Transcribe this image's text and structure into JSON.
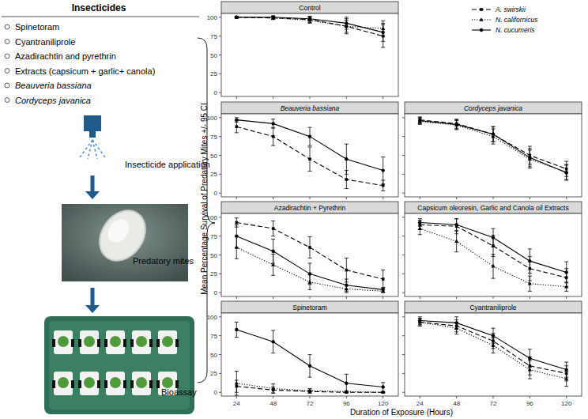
{
  "diagram": {
    "title": "Insecticides",
    "items": [
      "Spinetoram",
      "Cyantraniliprole",
      "Azadirachtin and pyrethrin",
      "Extracts (capsicum + garlic+ canola)",
      "Beauveria bassiana",
      "Cordyceps javanica"
    ],
    "steps": [
      "Insecticide application",
      "Predatory mites",
      "Bioassay"
    ]
  },
  "figure": {
    "y_label": "Mean Percentage Survival of Predatory Mites +/- 95 CI",
    "x_label": "Duration of Exposure (Hours)"
  },
  "chart_data": [
    {
      "type": "line",
      "title": "Control",
      "x": [
        24,
        48,
        72,
        96,
        120
      ],
      "xlim": [
        14,
        130
      ],
      "ylim": [
        -5,
        105
      ],
      "xticks": [
        24,
        48,
        72,
        96,
        120
      ],
      "yticks": [
        0,
        25,
        50,
        75,
        100
      ],
      "grid": false,
      "tick_labels": "y",
      "legend": "top-right",
      "series": [
        {
          "name": "A. swirskii",
          "color": "#000000",
          "marker": "square",
          "line_style": "dashed",
          "values": [
            100,
            99,
            97,
            88,
            75
          ],
          "error": [
            1,
            2,
            4,
            10,
            15
          ]
        },
        {
          "name": "N. californicus",
          "color": "#000000",
          "marker": "triangle",
          "line_style": "dotted",
          "values": [
            100,
            99,
            96,
            88,
            85
          ],
          "error": [
            1,
            2,
            4,
            8,
            10
          ]
        },
        {
          "name": "N. cucumeris",
          "color": "#000000",
          "marker": "circle",
          "line_style": "solid",
          "values": [
            100,
            100,
            98,
            92,
            80
          ],
          "error": [
            1,
            2,
            3,
            8,
            12
          ]
        }
      ]
    },
    {
      "type": "line",
      "title": "Beauveria bassiana",
      "x": [
        24,
        48,
        72,
        96,
        120
      ],
      "xlim": [
        14,
        130
      ],
      "ylim": [
        -5,
        105
      ],
      "xticks": [
        24,
        48,
        72,
        96,
        120
      ],
      "yticks": [
        0,
        25,
        50,
        75,
        100
      ],
      "grid": false,
      "tick_labels": "y",
      "series": [
        {
          "color": "#000000",
          "marker": "square",
          "line_style": "dashed",
          "values": [
            88,
            75,
            45,
            18,
            10
          ],
          "error": [
            8,
            12,
            16,
            12,
            7
          ]
        },
        {
          "color": "#000000",
          "marker": "circle",
          "line_style": "solid",
          "values": [
            97,
            92,
            75,
            45,
            30
          ],
          "error": [
            3,
            6,
            12,
            20,
            18
          ]
        }
      ]
    },
    {
      "type": "line",
      "title": "Cordyceps javanica",
      "x": [
        24,
        48,
        72,
        96,
        120
      ],
      "xlim": [
        14,
        130
      ],
      "ylim": [
        -5,
        105
      ],
      "xticks": [
        24,
        48,
        72,
        96,
        120
      ],
      "yticks": [
        0,
        25,
        50,
        75,
        100
      ],
      "grid": false,
      "tick_labels": false,
      "series": [
        {
          "color": "#000000",
          "marker": "square",
          "line_style": "dashed",
          "values": [
            97,
            92,
            78,
            50,
            32
          ],
          "error": [
            4,
            6,
            10,
            12,
            10
          ]
        },
        {
          "color": "#000000",
          "marker": "triangle",
          "line_style": "dotted",
          "values": [
            95,
            90,
            75,
            45,
            28
          ],
          "error": [
            4,
            6,
            10,
            12,
            10
          ]
        },
        {
          "color": "#000000",
          "marker": "circle",
          "line_style": "solid",
          "values": [
            96,
            91,
            78,
            47,
            27
          ],
          "error": [
            4,
            6,
            10,
            12,
            10
          ]
        }
      ]
    },
    {
      "type": "line",
      "title": "Azadirachtin + Pyrethrin",
      "x": [
        24,
        48,
        72,
        96,
        120
      ],
      "xlim": [
        14,
        130
      ],
      "ylim": [
        -5,
        105
      ],
      "xticks": [
        24,
        48,
        72,
        96,
        120
      ],
      "yticks": [
        0,
        25,
        50,
        75,
        100
      ],
      "grid": false,
      "tick_labels": "y",
      "series": [
        {
          "color": "#000000",
          "marker": "square",
          "line_style": "dashed",
          "values": [
            93,
            85,
            60,
            30,
            18
          ],
          "error": [
            6,
            10,
            14,
            16,
            12
          ]
        },
        {
          "color": "#000000",
          "marker": "triangle",
          "line_style": "dotted",
          "values": [
            60,
            37,
            14,
            5,
            2
          ],
          "error": [
            15,
            14,
            10,
            5,
            2
          ]
        },
        {
          "color": "#000000",
          "marker": "circle",
          "line_style": "solid",
          "values": [
            75,
            55,
            25,
            10,
            4
          ],
          "error": [
            15,
            16,
            14,
            8,
            3
          ]
        }
      ]
    },
    {
      "type": "line",
      "title": "Capsicum oleoresin, Garlic and Canola oil Extracts",
      "x": [
        24,
        48,
        72,
        96,
        120
      ],
      "xlim": [
        14,
        130
      ],
      "ylim": [
        -5,
        105
      ],
      "xticks": [
        24,
        48,
        72,
        96,
        120
      ],
      "yticks": [
        0,
        25,
        50,
        75,
        100
      ],
      "grid": false,
      "tick_labels": false,
      "series": [
        {
          "color": "#000000",
          "marker": "square",
          "line_style": "dashed",
          "values": [
            90,
            88,
            62,
            32,
            20
          ],
          "error": [
            6,
            10,
            14,
            16,
            12
          ]
        },
        {
          "color": "#000000",
          "marker": "triangle",
          "line_style": "dotted",
          "values": [
            85,
            68,
            35,
            12,
            8
          ],
          "error": [
            8,
            14,
            16,
            10,
            6
          ]
        },
        {
          "color": "#000000",
          "marker": "circle",
          "line_style": "solid",
          "values": [
            93,
            90,
            73,
            42,
            27
          ],
          "error": [
            5,
            8,
            12,
            16,
            14
          ]
        }
      ]
    },
    {
      "type": "line",
      "title": "Spinetoram",
      "x": [
        24,
        48,
        72,
        96,
        120
      ],
      "xlim": [
        14,
        130
      ],
      "ylim": [
        -5,
        105
      ],
      "xticks": [
        24,
        48,
        72,
        96,
        120
      ],
      "yticks": [
        0,
        25,
        50,
        75,
        100
      ],
      "grid": false,
      "tick_labels": true,
      "series": [
        {
          "color": "#000000",
          "marker": "square",
          "line_style": "dashed",
          "values": [
            8,
            3,
            1,
            0,
            0
          ],
          "error": [
            8,
            4,
            2,
            1,
            0
          ]
        },
        {
          "color": "#000000",
          "marker": "triangle",
          "line_style": "dotted",
          "values": [
            12,
            5,
            2,
            1,
            0
          ],
          "error": [
            16,
            6,
            3,
            1,
            0
          ]
        },
        {
          "color": "#000000",
          "marker": "circle",
          "line_style": "solid",
          "values": [
            83,
            67,
            35,
            12,
            7
          ],
          "error": [
            10,
            15,
            15,
            12,
            6
          ]
        }
      ]
    },
    {
      "type": "line",
      "title": "Cyantraniliprole",
      "x": [
        24,
        48,
        72,
        96,
        120
      ],
      "xlim": [
        14,
        130
      ],
      "ylim": [
        -5,
        105
      ],
      "xticks": [
        24,
        48,
        72,
        96,
        120
      ],
      "yticks": [
        0,
        25,
        50,
        75,
        100
      ],
      "grid": false,
      "tick_labels": "x",
      "series": [
        {
          "color": "#000000",
          "marker": "square",
          "line_style": "dashed",
          "values": [
            93,
            88,
            68,
            35,
            25
          ],
          "error": [
            5,
            8,
            10,
            12,
            10
          ]
        },
        {
          "color": "#000000",
          "marker": "triangle",
          "line_style": "dotted",
          "values": [
            93,
            85,
            62,
            30,
            18
          ],
          "error": [
            5,
            8,
            10,
            12,
            10
          ]
        },
        {
          "color": "#000000",
          "marker": "circle",
          "line_style": "solid",
          "values": [
            95,
            92,
            75,
            45,
            30
          ],
          "error": [
            5,
            8,
            10,
            12,
            10
          ]
        }
      ]
    }
  ]
}
